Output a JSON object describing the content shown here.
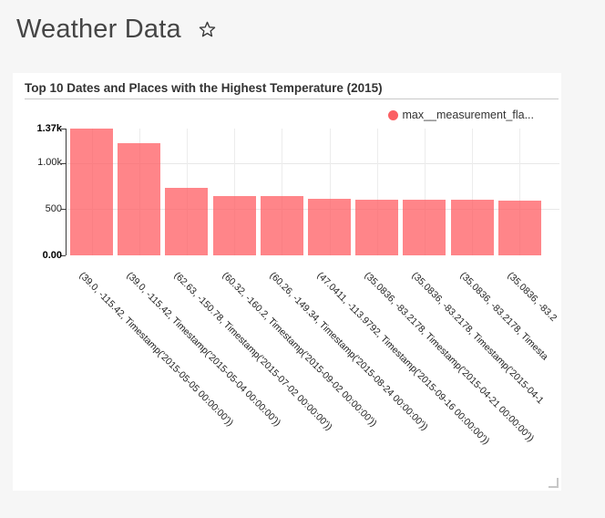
{
  "page": {
    "title": "Weather Data"
  },
  "card": {
    "title": "Top 10 Dates and Places with the Highest Temperature (2015)"
  },
  "legend": {
    "label": "max__measurement_fla...",
    "marker_color": "#fb5f63"
  },
  "chart_data": {
    "type": "bar",
    "title": "Top 10 Dates and Places with the Highest Temperature (2015)",
    "series_name": "max__measurement_fla...",
    "categories": [
      "(39.0, -115.42, Timestamp('2015-05-05 00:00:00'))",
      "(39.0, -115.42, Timestamp('2015-05-04 00:00:00'))",
      "(62.63, -150.78, Timestamp('2015-07-02 00:00:00'))",
      "(60.32, -160.2, Timestamp('2015-09-02 00:00:00'))",
      "(60.26, -149.34, Timestamp('2015-08-24 00:00:00'))",
      "(47.0411, -113.9792, Timestamp('2015-09-16 00:00:00'))",
      "(35.0836, -83.2178, Timestamp('2015-04-21 00:00:00'))",
      "(35.0836, -83.2178, Timestamp('2015-04-1",
      "(35.0836, -83.2178, Timesta",
      "(35.0836, -83.2"
    ],
    "values": [
      1370,
      1215,
      728,
      642,
      638,
      609,
      600,
      598,
      597,
      596
    ],
    "ylim": [
      0,
      1370
    ],
    "y_ticks": [
      {
        "label": "1.37k",
        "value": 1370,
        "bold": true
      },
      {
        "label": "1.00k",
        "value": 1000,
        "bold": false
      },
      {
        "label": "500",
        "value": 500,
        "bold": false
      },
      {
        "label": "0.00",
        "value": 0,
        "bold": true
      }
    ],
    "gridline_values": [
      500,
      1000
    ],
    "grid": true,
    "legend_position": "top-right",
    "bar_color": "#ff585d",
    "bar_opacity": 0.73,
    "xlabel": "",
    "ylabel": ""
  }
}
